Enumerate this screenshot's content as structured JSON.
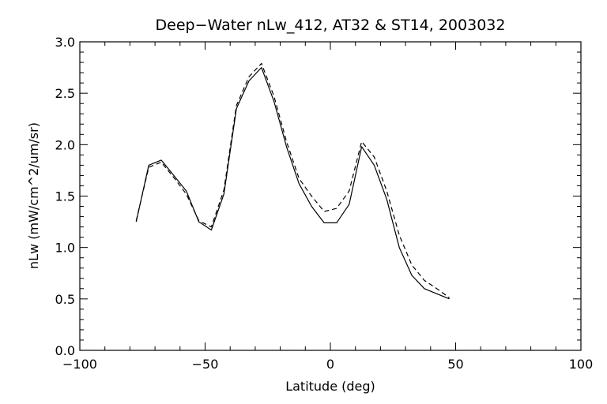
{
  "chart_data": {
    "type": "line",
    "title": "Deep−Water nLw_412, AT32 & ST14, 2003032",
    "xlabel": "Latitude (deg)",
    "ylabel": "nLw (mW/cm^2/um/sr)",
    "xlim": [
      -100,
      100
    ],
    "ylim": [
      0.0,
      3.0
    ],
    "x_ticks": [
      -100,
      -50,
      0,
      50,
      100
    ],
    "x_tick_labels": [
      "−100",
      "−50",
      "0",
      "50",
      "100"
    ],
    "y_ticks": [
      0.0,
      0.5,
      1.0,
      1.5,
      2.0,
      2.5,
      3.0
    ],
    "y_tick_labels": [
      "0.0",
      "0.5",
      "1.0",
      "1.5",
      "2.0",
      "2.5",
      "3.0"
    ],
    "grid": false,
    "series": [
      {
        "style": "solid",
        "color": "#000000",
        "x": [
          -77.5,
          -72.5,
          -67.5,
          -62.5,
          -57.5,
          -52.5,
          -47.5,
          -42.5,
          -37.5,
          -32.5,
          -27.5,
          -22.5,
          -17.5,
          -12.5,
          -7.5,
          -2.5,
          2.5,
          7.5,
          12.5,
          17.5,
          22.5,
          27.5,
          32.5,
          37.5,
          42.5,
          47.5
        ],
        "y": [
          1.25,
          1.8,
          1.85,
          1.7,
          1.55,
          1.25,
          1.17,
          1.52,
          2.35,
          2.62,
          2.75,
          2.42,
          1.98,
          1.62,
          1.4,
          1.24,
          1.24,
          1.42,
          1.98,
          1.8,
          1.47,
          1.0,
          0.73,
          0.6,
          0.55,
          0.5
        ]
      },
      {
        "style": "dashed",
        "color": "#000000",
        "x": [
          -77.5,
          -72.5,
          -67.5,
          -62.5,
          -57.5,
          -52.5,
          -47.5,
          -42.5,
          -37.5,
          -32.5,
          -27.5,
          -22.5,
          -17.5,
          -12.5,
          -7.5,
          -2.5,
          2.5,
          7.5,
          12.5,
          17.5,
          22.5,
          27.5,
          32.5,
          37.5,
          42.5,
          47.5
        ],
        "y": [
          1.26,
          1.78,
          1.83,
          1.68,
          1.52,
          1.26,
          1.2,
          1.56,
          2.38,
          2.66,
          2.79,
          2.47,
          2.03,
          1.67,
          1.5,
          1.35,
          1.38,
          1.55,
          2.03,
          1.88,
          1.55,
          1.12,
          0.83,
          0.68,
          0.6,
          0.51
        ]
      }
    ]
  }
}
